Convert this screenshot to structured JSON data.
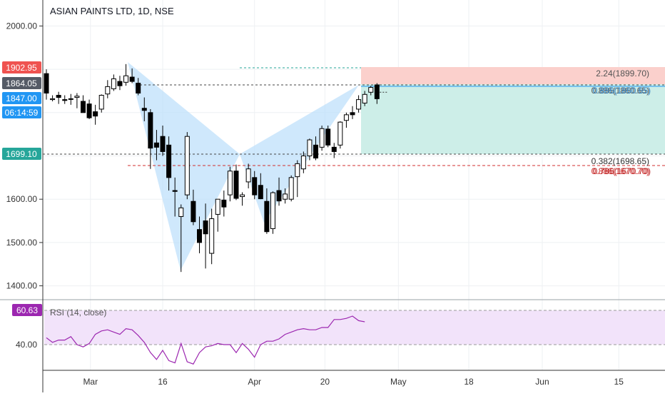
{
  "colors": {
    "up_fill": "#ffffff",
    "down_fill": "#000000",
    "candle_border": "#000000",
    "pattern_fill": "#bbdefb",
    "stop_zone": "#fbd0cc",
    "target_zone": "#cdeee8",
    "rsi_line": "#9c27b0",
    "rsi_band": "#f2e3fa",
    "red_tag": "#ef5350",
    "gray_tag": "#555b66",
    "blue_tag": "#2196f3",
    "green_tag": "#26a69a",
    "purple_tag": "#9c27b0"
  },
  "price_tags": {
    "high": "1902.95",
    "last": "1864.05",
    "current": "1847.00",
    "countdown": "06:14:59",
    "target": "1699.10"
  },
  "fib_labels": [
    {
      "text": "2.24(1899.70)",
      "color": "#555555"
    },
    {
      "text": "0.886(1860.65)",
      "color": "#555555"
    },
    {
      "text": "0.886(1860.65)",
      "color": "#2b7bbf"
    },
    {
      "text": "0.382(1698.65)",
      "color": "#333333"
    },
    {
      "text": "0.886(1670.70)",
      "color": "#d32f2f"
    },
    {
      "text": "0.786(1670.70)",
      "color": "#b71c1c"
    }
  ],
  "rsi": {
    "label": "RSI (14, close)",
    "current": "60.63",
    "ytick": "40.00",
    "values": [
      46,
      42,
      44,
      44,
      47,
      40,
      38,
      41,
      49,
      52,
      53,
      51,
      49,
      54,
      53,
      48,
      42,
      33,
      27,
      35,
      26,
      24,
      41,
      25,
      23,
      33,
      38,
      39,
      41,
      40,
      40,
      33,
      41,
      36,
      29,
      40,
      43,
      43,
      45,
      49,
      51,
      53,
      54,
      53,
      53,
      55,
      55,
      62,
      62,
      63,
      65,
      61,
      60
    ]
  },
  "chart_data": {
    "type": "candlestick",
    "title": "ASIAN PAINTS LTD, 1D, NSE",
    "ylim": [
      1368,
      2060
    ],
    "yticks": [
      2000,
      1900,
      1800,
      1700,
      1600,
      1500,
      1400
    ],
    "ytick_labels": [
      "2000.00",
      "",
      "",
      "",
      "1600.00",
      "1500.00",
      "1400.00"
    ],
    "xticks": [
      {
        "i": 7.2,
        "label": "Mar"
      },
      {
        "i": 19,
        "label": "16"
      },
      {
        "i": 34,
        "label": "Apr"
      },
      {
        "i": 45.5,
        "label": "20"
      },
      {
        "i": 57.5,
        "label": "May"
      },
      {
        "i": 69,
        "label": "18"
      },
      {
        "i": 81,
        "label": "Jun"
      },
      {
        "i": 93.5,
        "label": "15"
      }
    ],
    "candles": [
      [
        1890,
        1900,
        1830,
        1845
      ],
      [
        1830,
        1840,
        1826,
        1832
      ],
      [
        1840,
        1848,
        1820,
        1835
      ],
      [
        1830,
        1840,
        1820,
        1828
      ],
      [
        1832,
        1843,
        1818,
        1832
      ],
      [
        1835,
        1845,
        1810,
        1838
      ],
      [
        1826,
        1840,
        1800,
        1800
      ],
      [
        1820,
        1830,
        1785,
        1788
      ],
      [
        1802,
        1818,
        1772,
        1792
      ],
      [
        1808,
        1842,
        1800,
        1840
      ],
      [
        1843,
        1875,
        1833,
        1860
      ],
      [
        1855,
        1888,
        1850,
        1878
      ],
      [
        1872,
        1885,
        1852,
        1862
      ],
      [
        1870,
        1912,
        1862,
        1885
      ],
      [
        1882,
        1902,
        1868,
        1872
      ],
      [
        1868,
        1880,
        1840,
        1845
      ],
      [
        1810,
        1835,
        1780,
        1805
      ],
      [
        1800,
        1808,
        1670,
        1718
      ],
      [
        1730,
        1760,
        1690,
        1720
      ],
      [
        1745,
        1770,
        1700,
        1710
      ],
      [
        1725,
        1745,
        1620,
        1650
      ],
      [
        1620,
        1650,
        1560,
        1618
      ],
      [
        1560,
        1588,
        1432,
        1580
      ],
      [
        1610,
        1755,
        1600,
        1745
      ],
      [
        1595,
        1622,
        1540,
        1548
      ],
      [
        1530,
        1560,
        1475,
        1500
      ],
      [
        1550,
        1590,
        1440,
        1520
      ],
      [
        1475,
        1578,
        1450,
        1555
      ],
      [
        1565,
        1598,
        1525,
        1600
      ],
      [
        1598,
        1620,
        1560,
        1582
      ],
      [
        1610,
        1675,
        1595,
        1665
      ],
      [
        1665,
        1680,
        1598,
        1602
      ],
      [
        1606,
        1616,
        1585,
        1610
      ],
      [
        1640,
        1682,
        1625,
        1670
      ],
      [
        1650,
        1665,
        1600,
        1610
      ],
      [
        1632,
        1660,
        1600,
        1601
      ],
      [
        1595,
        1625,
        1520,
        1525
      ],
      [
        1532,
        1618,
        1520,
        1615
      ],
      [
        1620,
        1650,
        1585,
        1596
      ],
      [
        1600,
        1625,
        1590,
        1612
      ],
      [
        1600,
        1655,
        1595,
        1650
      ],
      [
        1652,
        1690,
        1605,
        1682
      ],
      [
        1670,
        1710,
        1660,
        1700
      ],
      [
        1700,
        1740,
        1690,
        1737
      ],
      [
        1725,
        1745,
        1690,
        1695
      ],
      [
        1720,
        1770,
        1712,
        1763
      ],
      [
        1762,
        1770,
        1720,
        1725
      ],
      [
        1720,
        1730,
        1695,
        1710
      ],
      [
        1725,
        1780,
        1717,
        1778
      ],
      [
        1782,
        1800,
        1765,
        1795
      ],
      [
        1800,
        1815,
        1785,
        1795
      ],
      [
        1808,
        1840,
        1800,
        1830
      ],
      [
        1822,
        1850,
        1815,
        1842
      ],
      [
        1847,
        1862,
        1840,
        1858
      ],
      [
        1864,
        1868,
        1820,
        1832
      ]
    ]
  }
}
